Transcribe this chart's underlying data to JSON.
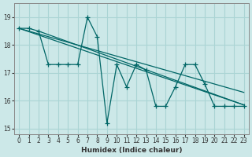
{
  "xlabel": "Humidex (Indice chaleur)",
  "ylabel": "",
  "xlim": [
    -0.5,
    23.5
  ],
  "ylim": [
    14.8,
    19.5
  ],
  "yticks": [
    15,
    16,
    17,
    18,
    19
  ],
  "xticks": [
    0,
    1,
    2,
    3,
    4,
    5,
    6,
    7,
    8,
    9,
    10,
    11,
    12,
    13,
    14,
    15,
    16,
    17,
    18,
    19,
    20,
    21,
    22,
    23
  ],
  "bg_color": "#cce8e8",
  "line_color": "#006666",
  "grid_color": "#aad4d4",
  "zigzag": [
    18.6,
    18.6,
    18.5,
    17.3,
    17.3,
    17.3,
    17.3,
    19.0,
    18.3,
    15.2,
    17.3,
    16.5,
    17.3,
    17.1,
    15.8,
    15.8,
    16.5,
    17.3,
    17.3,
    16.6,
    15.8,
    15.8,
    15.8,
    15.8
  ],
  "trend_lines": [
    {
      "x": [
        0,
        23
      ],
      "y": [
        18.6,
        15.85
      ]
    },
    {
      "x": [
        0,
        23
      ],
      "y": [
        18.6,
        16.3
      ]
    },
    {
      "x": [
        2,
        23
      ],
      "y": [
        18.5,
        15.85
      ]
    }
  ]
}
